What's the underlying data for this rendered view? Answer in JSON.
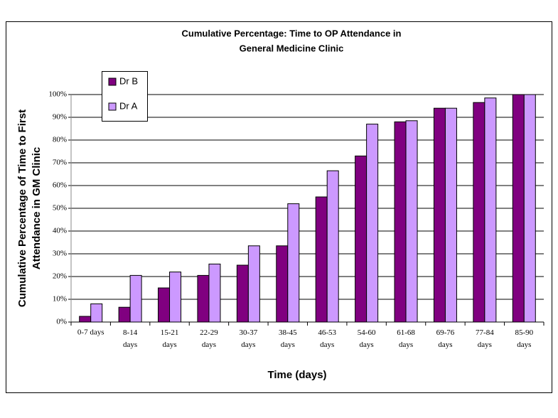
{
  "chart_data": {
    "type": "bar",
    "title": [
      "Cumulative Percentage:  Time  to OP Attendance in",
      "General Medicine Clinic"
    ],
    "x_label": "Time   (days)",
    "y_label": [
      "Cumulative Percentage of Time to First",
      "Attendance in GM Clinic"
    ],
    "categories": [
      "0-7 days",
      "8-14 days",
      "15-21 days",
      "22-29 days",
      "30-37 days",
      "38-45 days",
      "46-53 days",
      "54-60 days",
      "61-68 days",
      "69-76 days",
      "77-84 days",
      "85-90 days"
    ],
    "series": [
      {
        "name": "Dr B",
        "color": "#800080",
        "values": [
          2.5,
          6.5,
          15,
          20.5,
          25,
          33.5,
          55,
          73,
          88,
          94,
          96.5,
          100
        ]
      },
      {
        "name": "Dr A",
        "color": "#cc99ff",
        "values": [
          8,
          20.5,
          22,
          25.5,
          33.5,
          52,
          66.5,
          87,
          88.5,
          94,
          98.5,
          100
        ]
      }
    ],
    "ylim": [
      0,
      100
    ],
    "yticks": [
      {
        "value": 0,
        "label": "0%"
      },
      {
        "value": 10,
        "label": "10%"
      },
      {
        "value": 20,
        "label": "20%"
      },
      {
        "value": 30,
        "label": "30%"
      },
      {
        "value": 40,
        "label": "40%"
      },
      {
        "value": 50,
        "label": "50%"
      },
      {
        "value": 60,
        "label": "60%"
      },
      {
        "value": 70,
        "label": "70%"
      },
      {
        "value": 80,
        "label": "80%"
      },
      {
        "value": 90,
        "label": "90%"
      },
      {
        "value": 100,
        "label": "100%"
      }
    ],
    "grid": true,
    "legend": "upper left"
  }
}
